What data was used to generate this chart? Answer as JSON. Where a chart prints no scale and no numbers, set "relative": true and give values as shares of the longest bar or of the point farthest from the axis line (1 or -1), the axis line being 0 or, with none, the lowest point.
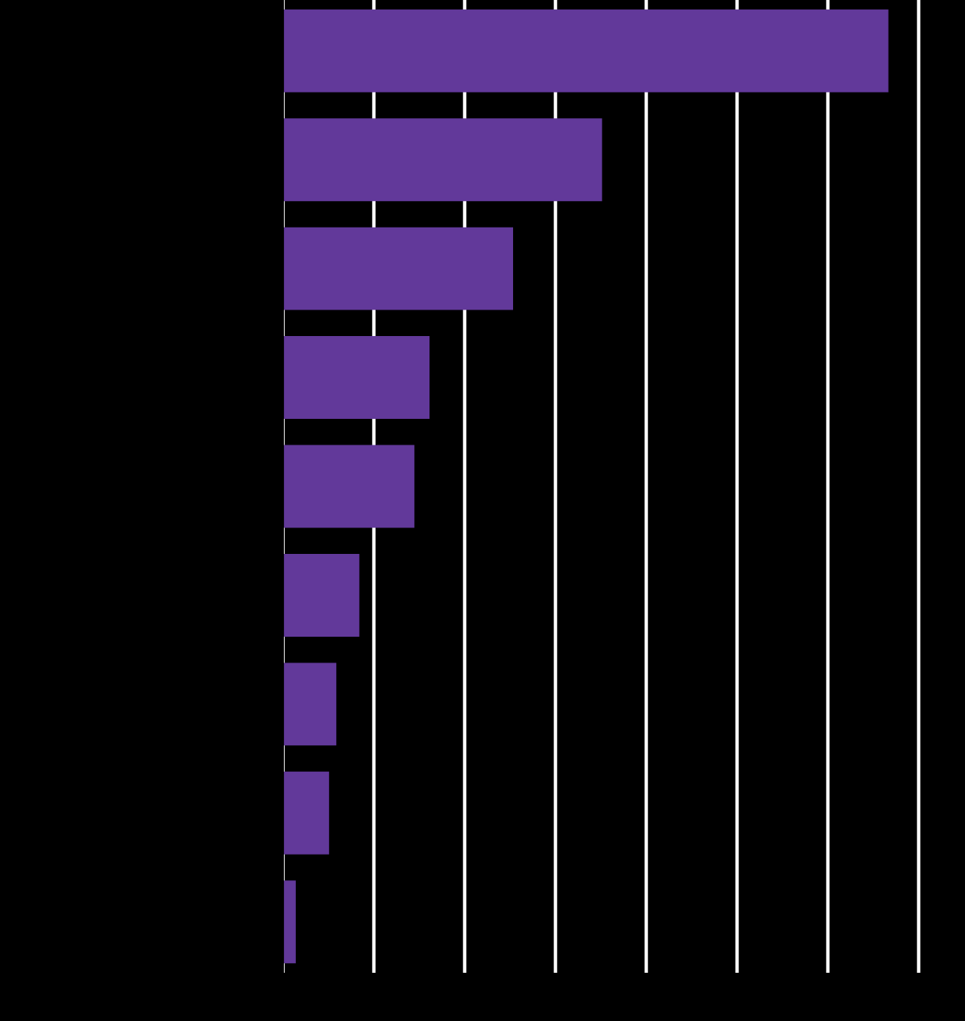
{
  "chart_data": {
    "type": "bar",
    "orientation": "horizontal",
    "relative": true,
    "grid": "x",
    "color": "#62399a",
    "categories": [
      null,
      null,
      null,
      null,
      null,
      null,
      null,
      null,
      null
    ],
    "values": [
      1,
      0.527,
      0.38,
      0.242,
      0.217,
      0.126,
      0.088,
      0.076,
      0.021
    ]
  }
}
